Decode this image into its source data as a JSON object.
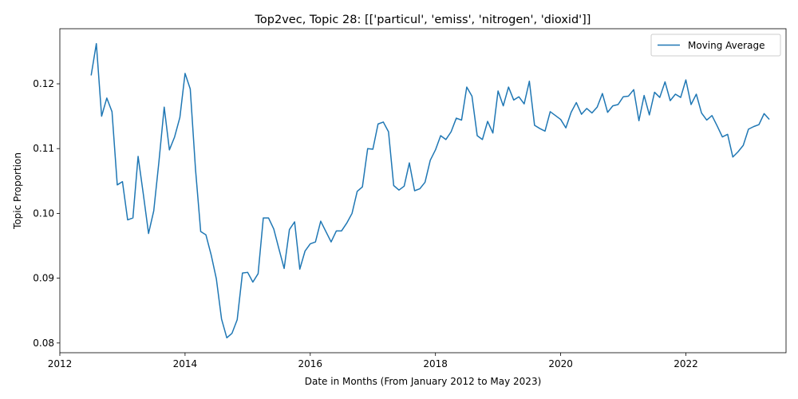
{
  "chart_data": {
    "type": "line",
    "title": "Top2vec, Topic 28: [['particul', 'emiss', 'nitrogen', 'dioxid']]",
    "xlabel": "Date in Months (From January 2012 to May 2023)",
    "ylabel": "Topic Proportion",
    "xlim": [
      2012.0,
      2023.6
    ],
    "ylim": [
      0.0785,
      0.1285
    ],
    "x_ticks": [
      2012,
      2014,
      2016,
      2018,
      2020,
      2022
    ],
    "y_ticks": [
      0.08,
      0.09,
      0.1,
      0.11,
      0.12
    ],
    "y_tick_labels": [
      "0.08",
      "0.09",
      "0.10",
      "0.11",
      "0.12"
    ],
    "grid": false,
    "legend_position": "top-right",
    "series": [
      {
        "name": "Moving Average",
        "color": "#1f77b4",
        "x": [
          2012.5,
          2012.583,
          2012.667,
          2012.75,
          2012.833,
          2012.917,
          2013.0,
          2013.083,
          2013.167,
          2013.25,
          2013.333,
          2013.417,
          2013.5,
          2013.583,
          2013.667,
          2013.75,
          2013.833,
          2013.917,
          2014.0,
          2014.083,
          2014.167,
          2014.25,
          2014.333,
          2014.417,
          2014.5,
          2014.583,
          2014.667,
          2014.75,
          2014.833,
          2014.917,
          2015.0,
          2015.083,
          2015.167,
          2015.25,
          2015.333,
          2015.417,
          2015.5,
          2015.583,
          2015.667,
          2015.75,
          2015.833,
          2015.917,
          2016.0,
          2016.083,
          2016.167,
          2016.25,
          2016.333,
          2016.417,
          2016.5,
          2016.583,
          2016.667,
          2016.75,
          2016.833,
          2016.917,
          2017.0,
          2017.083,
          2017.167,
          2017.25,
          2017.333,
          2017.417,
          2017.5,
          2017.583,
          2017.667,
          2017.75,
          2017.833,
          2017.917,
          2018.0,
          2018.083,
          2018.167,
          2018.25,
          2018.333,
          2018.417,
          2018.5,
          2018.583,
          2018.667,
          2018.75,
          2018.833,
          2018.917,
          2019.0,
          2019.083,
          2019.167,
          2019.25,
          2019.333,
          2019.417,
          2019.5,
          2019.583,
          2019.667,
          2019.75,
          2019.833,
          2019.917,
          2020.0,
          2020.083,
          2020.167,
          2020.25,
          2020.333,
          2020.417,
          2020.5,
          2020.583,
          2020.667,
          2020.75,
          2020.833,
          2020.917,
          2021.0,
          2021.083,
          2021.167,
          2021.25,
          2021.333,
          2021.417,
          2021.5,
          2021.583,
          2021.667,
          2021.75,
          2021.833,
          2021.917,
          2022.0,
          2022.083,
          2022.167,
          2022.25,
          2022.333,
          2022.417,
          2022.5,
          2022.583,
          2022.667,
          2022.75,
          2022.833,
          2022.917,
          2023.0,
          2023.083,
          2023.167,
          2023.25,
          2023.333
        ],
        "y": [
          0.1213,
          0.1262,
          0.115,
          0.1178,
          0.1157,
          0.1044,
          0.1049,
          0.099,
          0.0993,
          0.1088,
          0.103,
          0.0969,
          0.1004,
          0.108,
          0.1164,
          0.1098,
          0.1118,
          0.1148,
          0.1216,
          0.1192,
          0.1068,
          0.0972,
          0.0967,
          0.0936,
          0.0899,
          0.0837,
          0.0808,
          0.0815,
          0.0836,
          0.0908,
          0.0909,
          0.0894,
          0.0907,
          0.0993,
          0.0993,
          0.0976,
          0.0945,
          0.0915,
          0.0975,
          0.0987,
          0.0914,
          0.0942,
          0.0953,
          0.0956,
          0.0988,
          0.0972,
          0.0956,
          0.0973,
          0.0973,
          0.0985,
          0.1,
          0.1034,
          0.1041,
          0.11,
          0.1099,
          0.1138,
          0.1141,
          0.1126,
          0.1043,
          0.1036,
          0.1042,
          0.1078,
          0.1035,
          0.1038,
          0.1048,
          0.1082,
          0.1098,
          0.112,
          0.1114,
          0.1126,
          0.1147,
          0.1144,
          0.1195,
          0.1181,
          0.112,
          0.1114,
          0.1142,
          0.1124,
          0.1189,
          0.1166,
          0.1195,
          0.1175,
          0.118,
          0.1169,
          0.1204,
          0.1136,
          0.1131,
          0.1127,
          0.1157,
          0.1151,
          0.1145,
          0.1132,
          0.1156,
          0.1171,
          0.1153,
          0.1162,
          0.1155,
          0.1164,
          0.1185,
          0.1156,
          0.1166,
          0.1168,
          0.118,
          0.1181,
          0.1191,
          0.1143,
          0.1182,
          0.1152,
          0.1187,
          0.1179,
          0.1203,
          0.1174,
          0.1184,
          0.1179,
          0.1206,
          0.1168,
          0.1184,
          0.1155,
          0.1144,
          0.1151,
          0.1135,
          0.1118,
          0.1122,
          0.1087,
          0.1095,
          0.1105,
          0.113,
          0.1134,
          0.1137,
          0.1154,
          0.1145
        ]
      }
    ]
  }
}
